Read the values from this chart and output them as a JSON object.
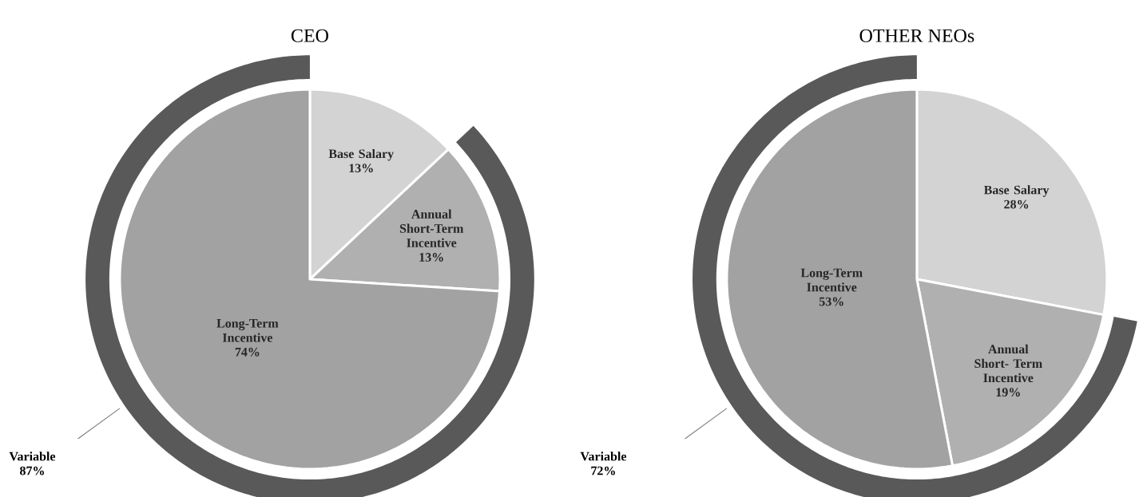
{
  "chart_data": [
    {
      "type": "pie",
      "title": "CEO",
      "categories": [
        "Base Salary",
        "Annual Short-Term Incentive",
        "Long-Term Incentive"
      ],
      "values": [
        13,
        13,
        74
      ],
      "colors": [
        "#d3d3d3",
        "#b0b0b0",
        "#a2a2a2"
      ],
      "value_labels": [
        "13%",
        "13%",
        "74%"
      ],
      "annotations": [
        "Variable 87%"
      ]
    },
    {
      "type": "pie",
      "title": "OTHER NEOs",
      "categories": [
        "Base Salary",
        "Annual Short- Term Incentive",
        "Long-Term Incentive"
      ],
      "values": [
        28,
        19,
        53
      ],
      "colors": [
        "#d3d3d3",
        "#b0b0b0",
        "#a2a2a2"
      ],
      "value_labels": [
        "28%",
        "19%",
        "53%"
      ],
      "annotations": [
        "Variable 72%"
      ]
    }
  ]
}
